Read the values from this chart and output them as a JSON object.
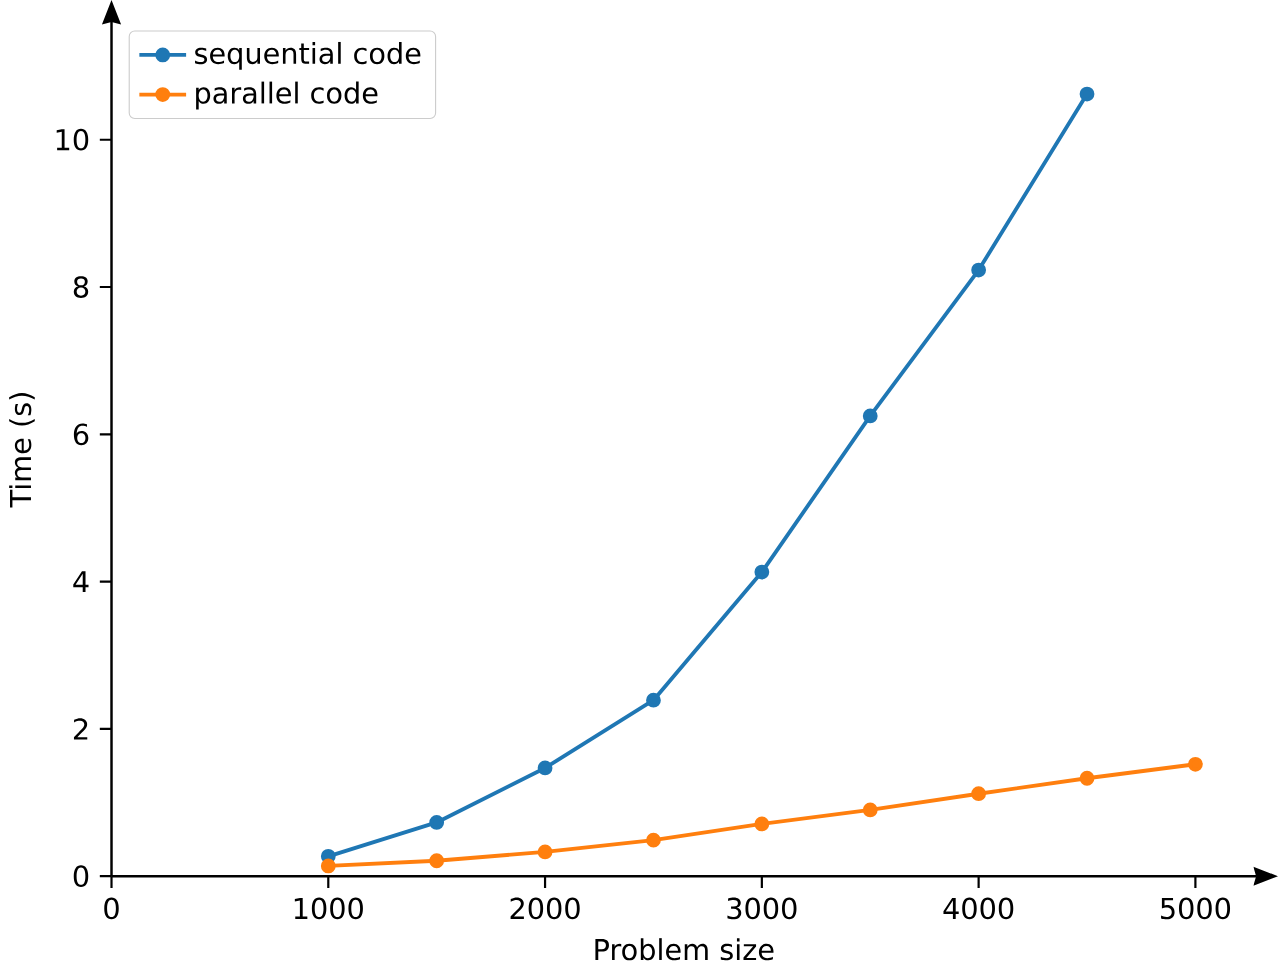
{
  "chart_data": {
    "type": "line",
    "xlabel": "Problem size",
    "ylabel": "Time (s)",
    "x": [
      1000,
      1500,
      2000,
      2500,
      3000,
      3500,
      4000,
      4500,
      5000
    ],
    "series": [
      {
        "name": "sequential code",
        "color": "#1f77b4",
        "values": [
          0.27,
          0.73,
          1.47,
          2.39,
          4.13,
          6.25,
          8.23,
          10.62,
          null
        ]
      },
      {
        "name": "parallel code",
        "color": "#ff7f0e",
        "values": [
          0.14,
          0.21,
          0.33,
          0.49,
          0.71,
          0.9,
          1.12,
          1.33,
          1.52
        ]
      }
    ],
    "xlim": [
      0,
      5280
    ],
    "ylim": [
      0,
      11.6
    ],
    "xticks": [
      0,
      1000,
      2000,
      3000,
      4000,
      5000
    ],
    "yticks": [
      0,
      2,
      4,
      6,
      8,
      10
    ],
    "legend": "top left",
    "marker": "circle",
    "line_style": "solid",
    "grid": false
  }
}
